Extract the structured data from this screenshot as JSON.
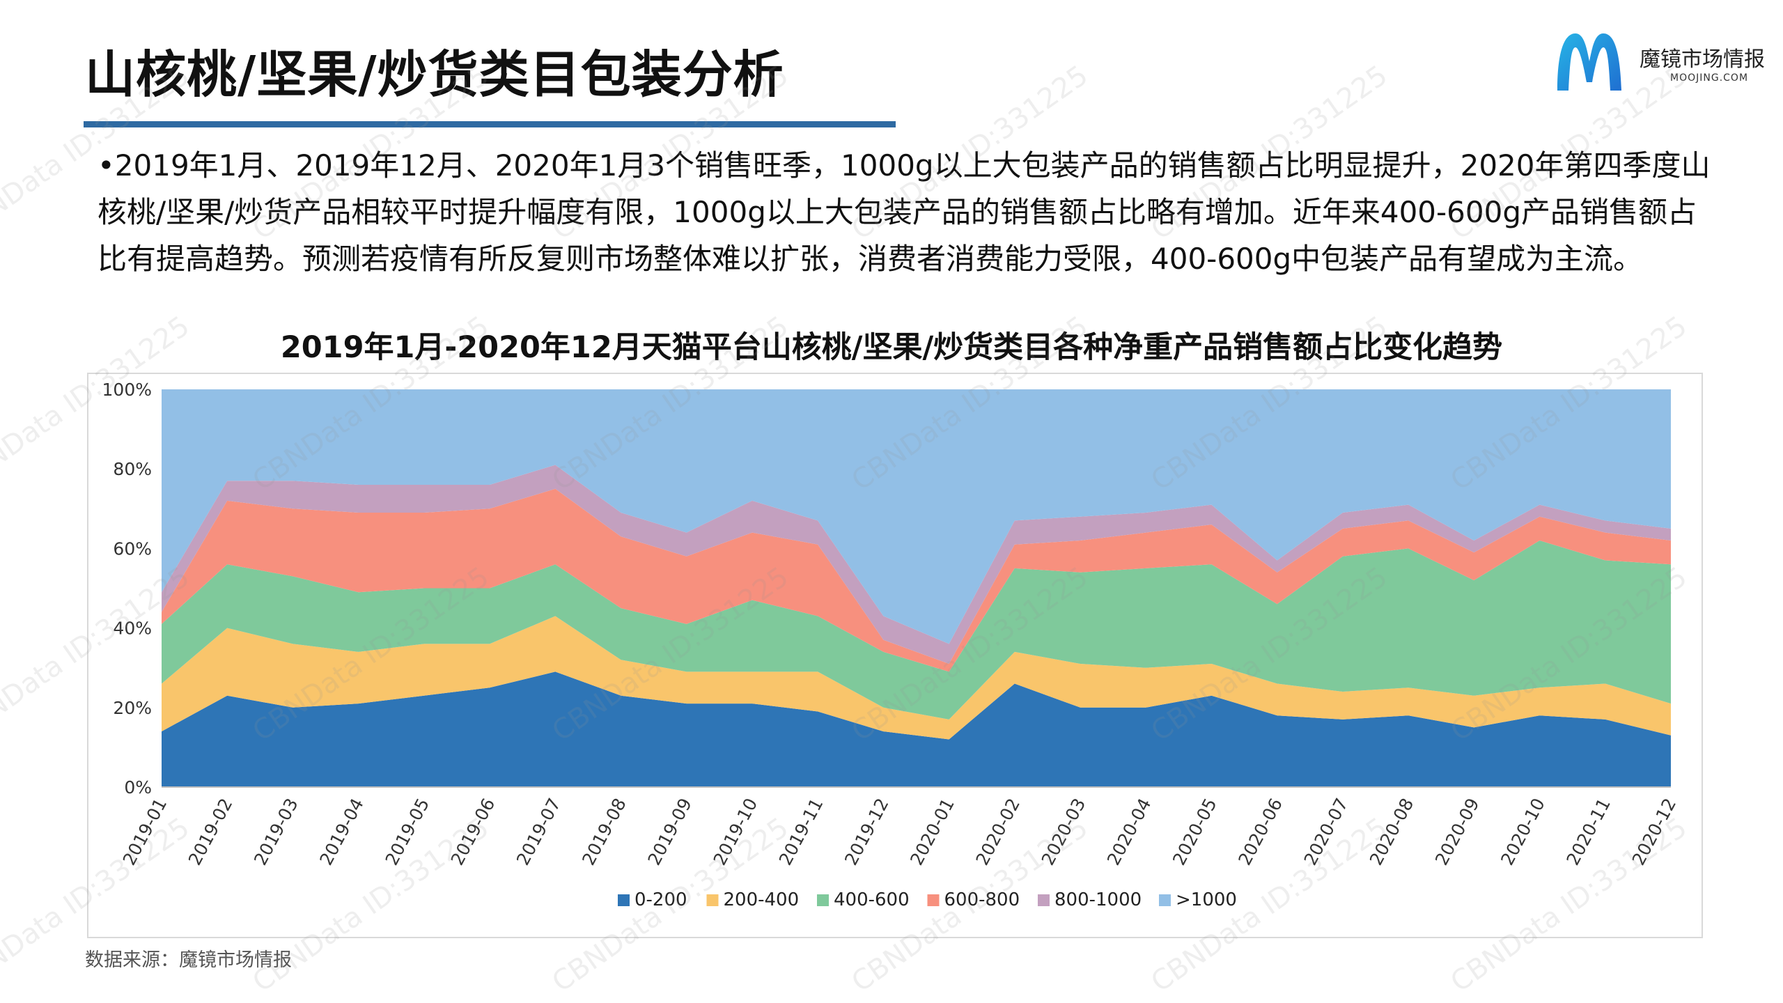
{
  "page": {
    "title": "山核桃/坚果/炒货类目包装分析",
    "brand_name": "魔镜市场情报",
    "brand_url": "MOOJING.COM",
    "paragraph": "•2019年1月、2019年12月、2020年1月3个销售旺季，1000g以上大包装产品的销售额占比明显提升，2020年第四季度山核桃/坚果/炒货产品相较平时提升幅度有限，1000g以上大包装产品的销售额占比略有增加。近年来400-600g产品销售额占比有提高趋势。预测若疫情有所反复则市场整体难以扩张，消费者消费能力受限，400-600g中包装产品有望成为主流。",
    "source": "数据来源：魔镜市场情报",
    "watermark": "CBNData ID:331225"
  },
  "chart_data": {
    "type": "area",
    "stacked": true,
    "title": "2019年1月-2020年12月天猫平台山核桃/坚果/炒货类目各种净重产品销售额占比变化趋势",
    "categories": [
      "2019-01",
      "2019-02",
      "2019-03",
      "2019-04",
      "2019-05",
      "2019-06",
      "2019-07",
      "2019-08",
      "2019-09",
      "2019-10",
      "2019-11",
      "2019-12",
      "2020-01",
      "2020-02",
      "2020-03",
      "2020-04",
      "2020-05",
      "2020-06",
      "2020-07",
      "2020-08",
      "2020-09",
      "2020-10",
      "2020-11",
      "2020-12"
    ],
    "ylim": [
      0,
      100
    ],
    "yticks": [
      "0%",
      "20%",
      "40%",
      "60%",
      "80%",
      "100%"
    ],
    "legend_position": "bottom",
    "grid": false,
    "series": [
      {
        "name": "0-200",
        "color": "#2e75b6",
        "values": [
          14,
          23,
          20,
          21,
          23,
          25,
          29,
          23,
          21,
          21,
          19,
          14,
          12,
          26,
          20,
          20,
          23,
          18,
          17,
          18,
          15,
          18,
          17,
          13
        ]
      },
      {
        "name": "200-400",
        "color": "#f9c56b",
        "values": [
          12,
          17,
          16,
          13,
          13,
          11,
          14,
          9,
          8,
          8,
          10,
          6,
          5,
          8,
          11,
          10,
          8,
          8,
          7,
          7,
          8,
          7,
          9,
          8
        ]
      },
      {
        "name": "400-600",
        "color": "#7fc99b",
        "values": [
          15,
          16,
          17,
          15,
          14,
          14,
          13,
          13,
          12,
          18,
          14,
          14,
          12,
          21,
          23,
          25,
          25,
          20,
          34,
          35,
          29,
          37,
          31,
          35
        ]
      },
      {
        "name": "600-800",
        "color": "#f7907e",
        "values": [
          3,
          16,
          17,
          20,
          19,
          20,
          19,
          18,
          17,
          17,
          18,
          3,
          2,
          6,
          8,
          9,
          10,
          8,
          7,
          7,
          7,
          6,
          7,
          6
        ]
      },
      {
        "name": "800-1000",
        "color": "#c3a0bf",
        "values": [
          5,
          5,
          7,
          7,
          7,
          6,
          6,
          6,
          6,
          8,
          6,
          6,
          5,
          6,
          6,
          5,
          5,
          3,
          4,
          4,
          3,
          3,
          3,
          3
        ]
      },
      {
        "name": ">1000",
        "color": "#92bfe6",
        "values": [
          51,
          23,
          23,
          24,
          24,
          24,
          19,
          31,
          36,
          28,
          33,
          57,
          64,
          33,
          32,
          31,
          29,
          43,
          31,
          29,
          38,
          29,
          33,
          35
        ]
      }
    ]
  }
}
